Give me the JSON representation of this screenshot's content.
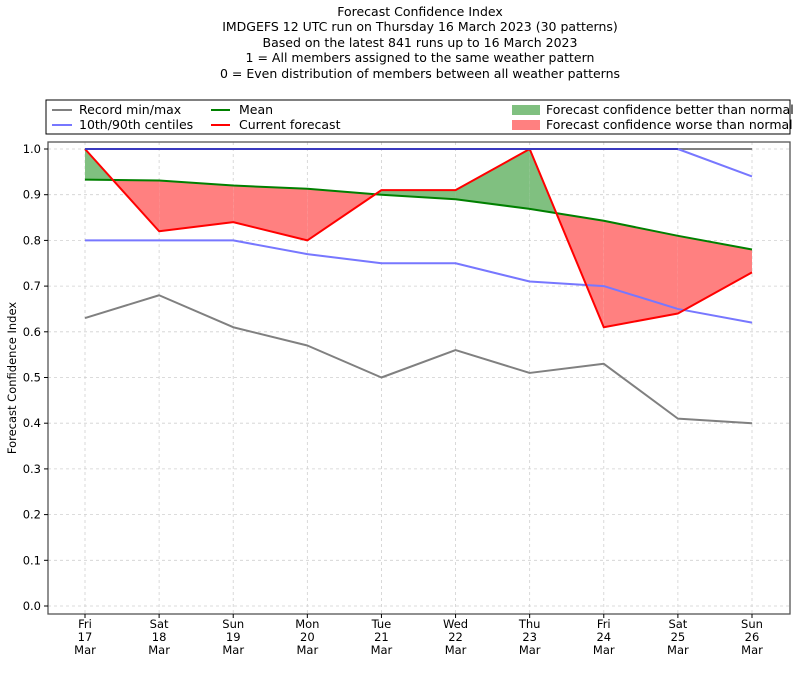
{
  "chart_data": {
    "type": "line",
    "title_lines": [
      "Forecast Confidence Index",
      "IMDGEFS 12 UTC run on Thursday 16 March 2023 (30 patterns)",
      "Based on the latest 841 runs up to 16 March 2023",
      "1 = All members assigned to the same weather pattern",
      "0 = Even distribution of members between all weather patterns"
    ],
    "xlabel": "",
    "ylabel": "Forecast Confidence Index",
    "ylim": [
      0.0,
      1.0
    ],
    "yticks": [
      "0.0",
      "0.1",
      "0.2",
      "0.3",
      "0.4",
      "0.5",
      "0.6",
      "0.7",
      "0.8",
      "0.9",
      "1.0"
    ],
    "grid": true,
    "legend_placement": "top",
    "categories": [
      {
        "day": "Fri",
        "date": "17",
        "month": "Mar"
      },
      {
        "day": "Sat",
        "date": "18",
        "month": "Mar"
      },
      {
        "day": "Sun",
        "date": "19",
        "month": "Mar"
      },
      {
        "day": "Mon",
        "date": "20",
        "month": "Mar"
      },
      {
        "day": "Tue",
        "date": "21",
        "month": "Mar"
      },
      {
        "day": "Wed",
        "date": "22",
        "month": "Mar"
      },
      {
        "day": "Thu",
        "date": "23",
        "month": "Mar"
      },
      {
        "day": "Fri",
        "date": "24",
        "month": "Mar"
      },
      {
        "day": "Sat",
        "date": "25",
        "month": "Mar"
      },
      {
        "day": "Sun",
        "date": "26",
        "month": "Mar"
      }
    ],
    "series": [
      {
        "name": "Record max",
        "color": "#808080",
        "values": [
          1.0,
          1.0,
          1.0,
          1.0,
          1.0,
          1.0,
          1.0,
          1.0,
          1.0,
          1.0
        ]
      },
      {
        "name": "Record min",
        "color": "#808080",
        "values": [
          0.63,
          0.68,
          0.61,
          0.57,
          0.5,
          0.56,
          0.51,
          0.53,
          0.41,
          0.4
        ]
      },
      {
        "name": "90th centile",
        "color": "#7777ff",
        "values": [
          1.0,
          1.0,
          1.0,
          1.0,
          1.0,
          1.0,
          1.0,
          1.0,
          1.0,
          0.94
        ]
      },
      {
        "name": "10th centile",
        "color": "#7777ff",
        "values": [
          0.8,
          0.8,
          0.8,
          0.77,
          0.75,
          0.75,
          0.71,
          0.7,
          0.65,
          0.62
        ]
      },
      {
        "name": "Mean",
        "color": "#008000",
        "values": [
          0.933,
          0.931,
          0.92,
          0.913,
          0.9,
          0.89,
          0.869,
          0.843,
          0.81,
          0.78
        ]
      },
      {
        "name": "Current forecast",
        "color": "#ff0000",
        "values": [
          1.0,
          0.82,
          0.84,
          0.8,
          0.91,
          0.91,
          1.0,
          0.61,
          0.64,
          0.73
        ]
      }
    ],
    "fills": {
      "better": {
        "label": "Forecast confidence better than normal",
        "color": "#80c080"
      },
      "worse": {
        "label": "Forecast confidence worse than normal",
        "color": "#ff8080"
      }
    },
    "legend": [
      {
        "label": "Record min/max",
        "color": "#808080",
        "kind": "line"
      },
      {
        "label": "10th/90th centiles",
        "color": "#7777ff",
        "kind": "line"
      },
      {
        "label": "Mean",
        "color": "#008000",
        "kind": "line"
      },
      {
        "label": "Current forecast",
        "color": "#ff0000",
        "kind": "line"
      },
      {
        "label": "Forecast confidence better than normal",
        "color": "#80c080",
        "kind": "patch"
      },
      {
        "label": "Forecast confidence worse than normal",
        "color": "#ff8080",
        "kind": "patch"
      }
    ]
  }
}
